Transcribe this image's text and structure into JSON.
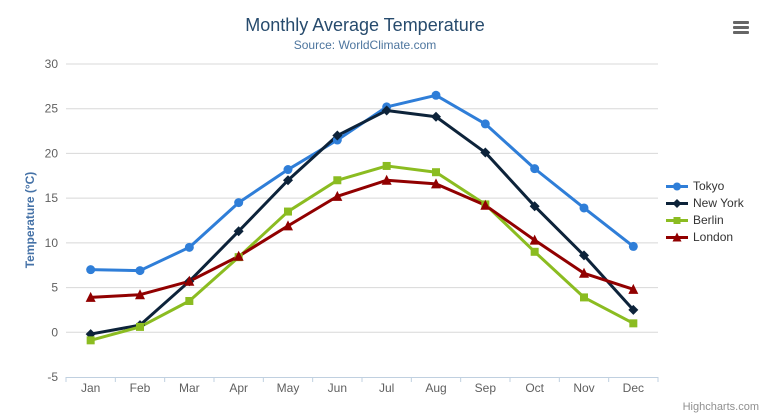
{
  "credits": "Highcharts.com",
  "chart_data": {
    "type": "line",
    "title": "Monthly Average Temperature",
    "subtitle": "Source: WorldClimate.com",
    "categories": [
      "Jan",
      "Feb",
      "Mar",
      "Apr",
      "May",
      "Jun",
      "Jul",
      "Aug",
      "Sep",
      "Oct",
      "Nov",
      "Dec"
    ],
    "xlabel": "",
    "ylabel": "Temperature (°C)",
    "ylim": [
      -5,
      30
    ],
    "ytick_interval": 5,
    "grid": true,
    "legend_position": "right",
    "colors": {
      "grid": "#d8d8d8",
      "axis_line": "#c0d0e0",
      "tick_label": "#606060",
      "title": "#274b6d",
      "subtitle": "#4d759e",
      "axis_title": "#4572a7",
      "legend_text": "#333333"
    },
    "series": [
      {
        "name": "Tokyo",
        "color": "#2f7ed8",
        "marker": "circle",
        "values": [
          7.0,
          6.9,
          9.5,
          14.5,
          18.2,
          21.5,
          25.2,
          26.5,
          23.3,
          18.3,
          13.9,
          9.6
        ]
      },
      {
        "name": "New York",
        "color": "#0d233a",
        "marker": "diamond",
        "values": [
          -0.2,
          0.8,
          5.7,
          11.3,
          17.0,
          22.0,
          24.8,
          24.1,
          20.1,
          14.1,
          8.6,
          2.5
        ]
      },
      {
        "name": "Berlin",
        "color": "#8bbc21",
        "marker": "square",
        "values": [
          -0.9,
          0.6,
          3.5,
          8.4,
          13.5,
          17.0,
          18.6,
          17.9,
          14.3,
          9.0,
          3.9,
          1.0
        ]
      },
      {
        "name": "London",
        "color": "#910000",
        "marker": "triangle",
        "values": [
          3.9,
          4.2,
          5.7,
          8.5,
          11.9,
          15.2,
          17.0,
          16.6,
          14.2,
          10.3,
          6.6,
          4.8
        ]
      }
    ]
  }
}
